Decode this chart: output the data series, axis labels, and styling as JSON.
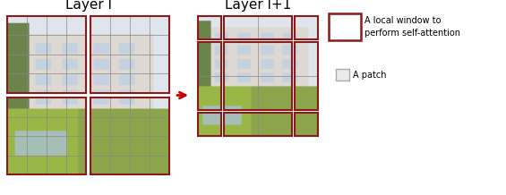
{
  "title_l": "Layer l",
  "title_l1": "Layer l+1",
  "window_color": "#8B1A1A",
  "window_lw": 1.5,
  "patch_grid_color": "#888888",
  "patch_grid_lw": 0.5,
  "arrow_color": "#CC0000",
  "legend_window_label_1": "A local window to",
  "legend_window_label_2": "perform self-attention",
  "legend_patch_label": "A patch",
  "bg_color": "#FFFFFF",
  "fig_width": 5.65,
  "fig_height": 2.18,
  "title_fontsize": 11,
  "label_fontsize": 7.0
}
